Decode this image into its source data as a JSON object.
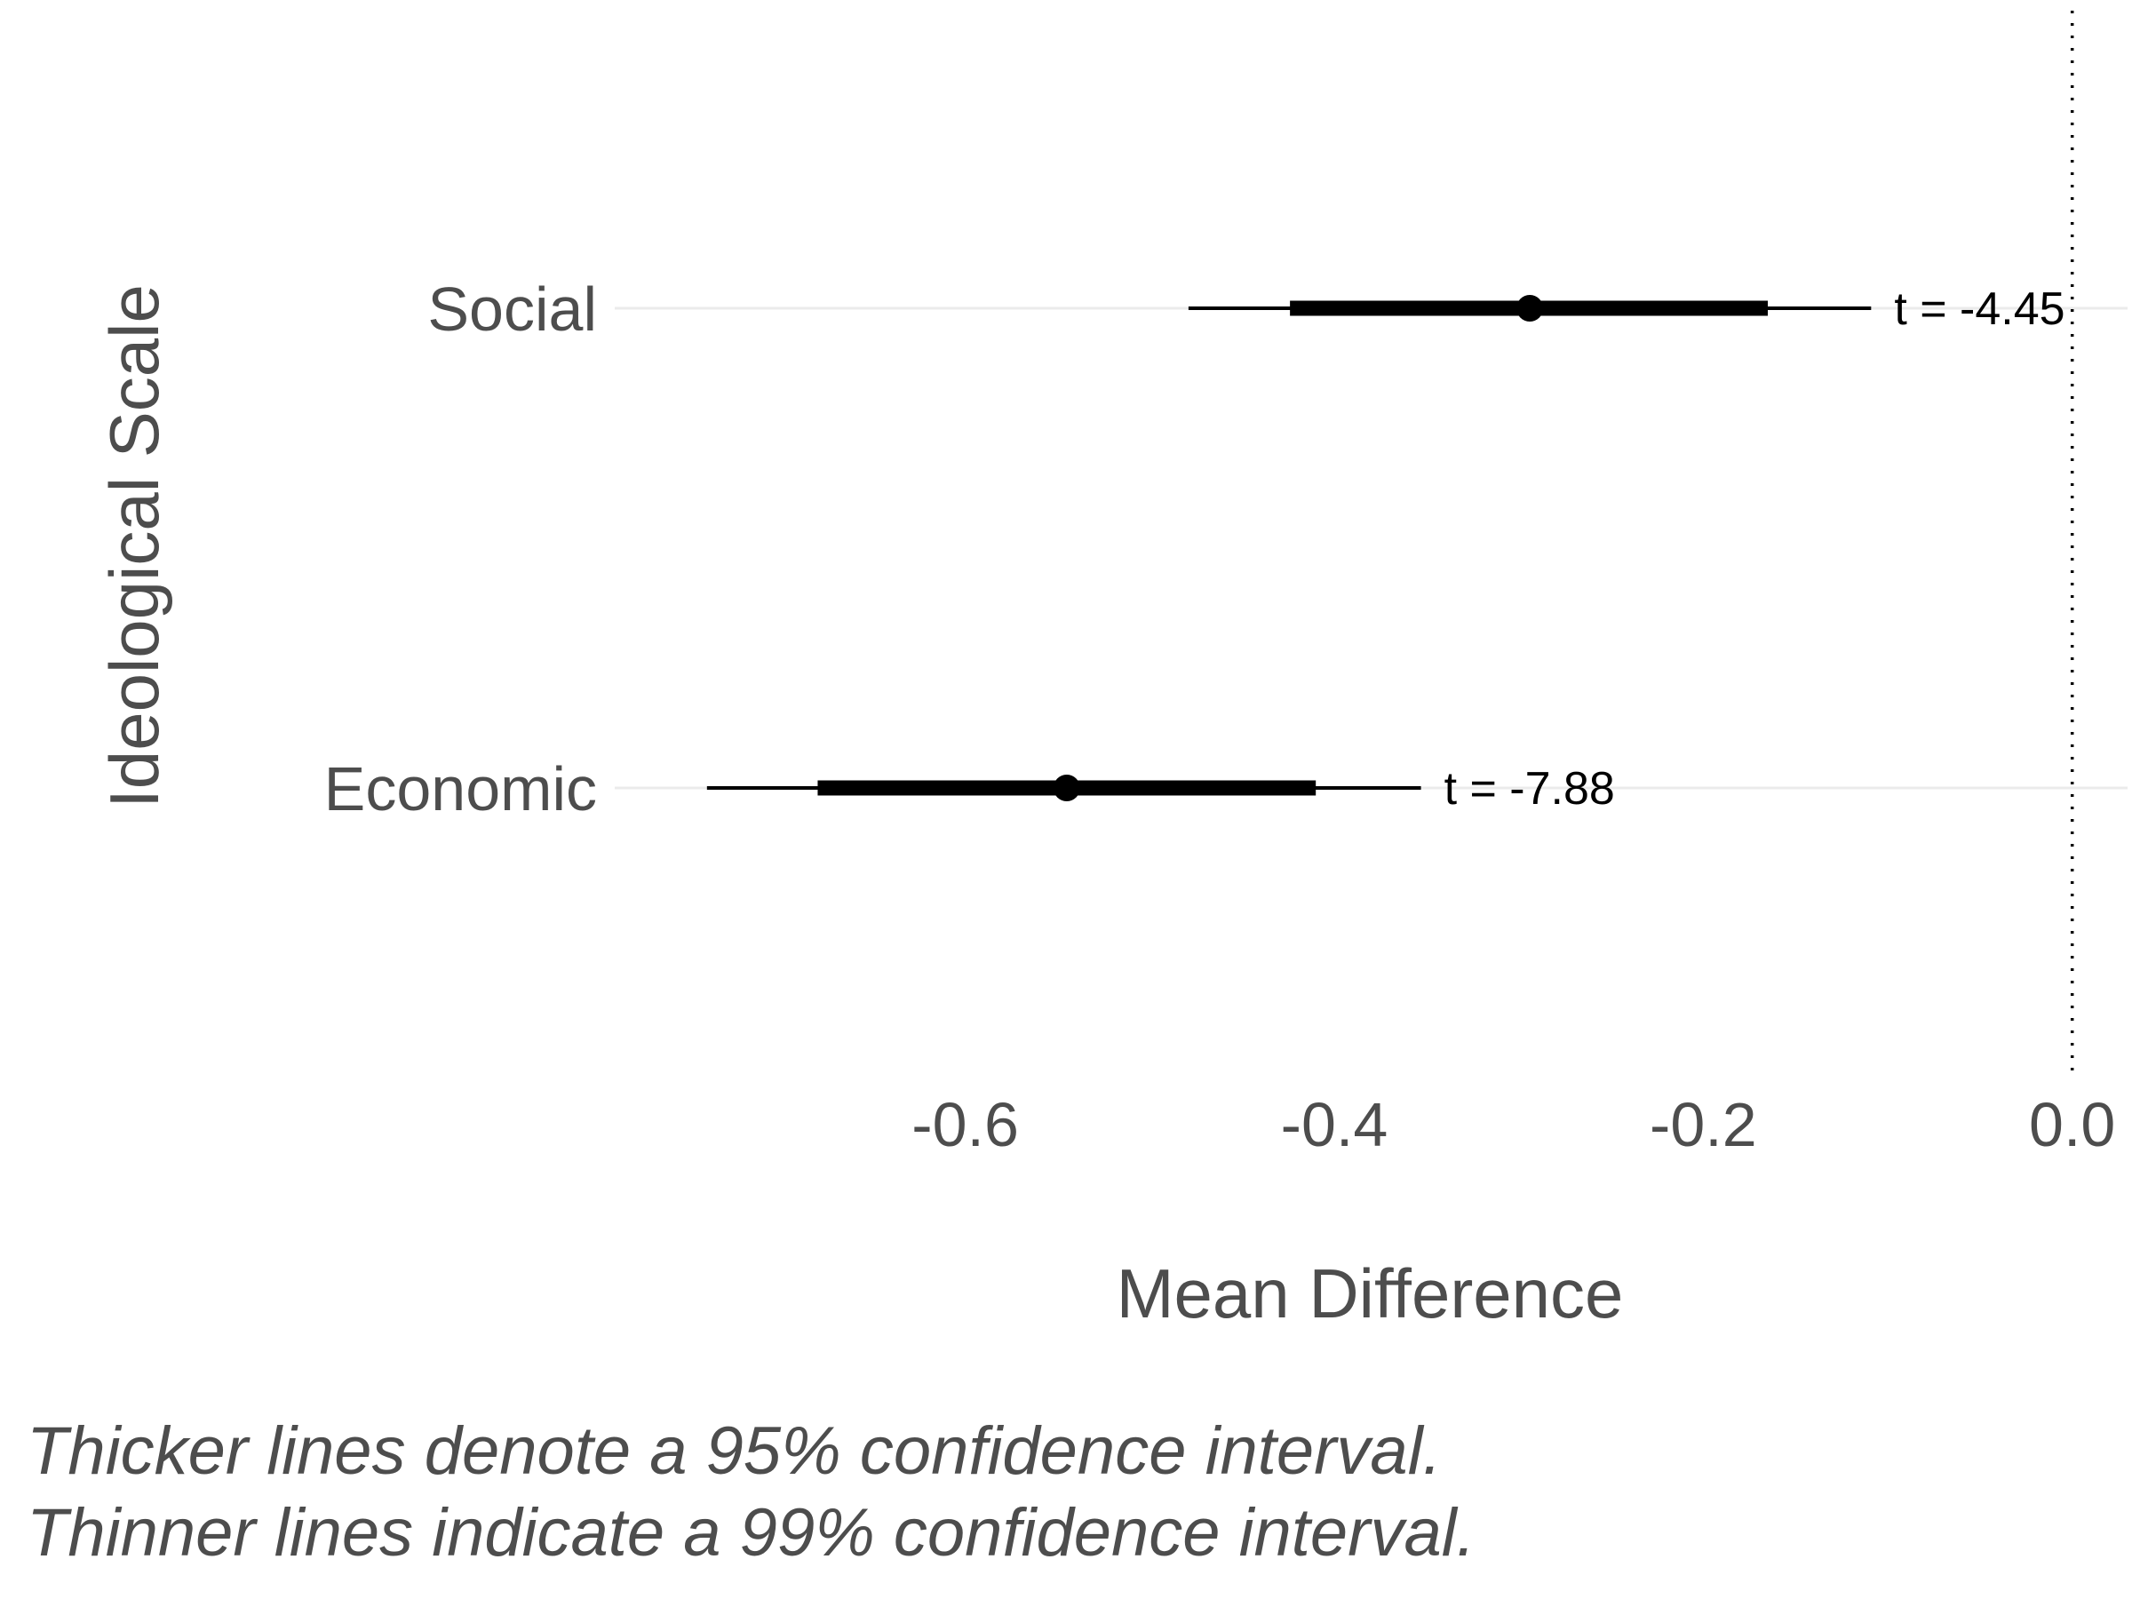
{
  "chart_data": {
    "type": "forest",
    "ylabel": "Ideological Scale",
    "xlabel": "Mean Difference",
    "xlim": [
      -0.79,
      0.03
    ],
    "x_ticks": [
      -0.6,
      -0.4,
      -0.2,
      0.0
    ],
    "x_tick_labels": [
      "-0.6",
      "-0.4",
      "-0.2",
      "0.0"
    ],
    "reference_line": 0.0,
    "grid": "horizontal major lines only",
    "categories": [
      "Social",
      "Economic"
    ],
    "estimates": [
      {
        "label": "Social",
        "mean": -0.294,
        "ci95": [
          -0.424,
          -0.165
        ],
        "ci99": [
          -0.479,
          -0.109
        ],
        "annotation": "t = -4.45"
      },
      {
        "label": "Economic",
        "mean": -0.545,
        "ci95": [
          -0.68,
          -0.41
        ],
        "ci99": [
          -0.74,
          -0.353
        ],
        "annotation": "t = -7.88"
      }
    ]
  },
  "caption": {
    "line1": "Thicker lines denote a 95% confidence interval.",
    "line2": "Thinner lines indicate a 99% confidence interval."
  }
}
